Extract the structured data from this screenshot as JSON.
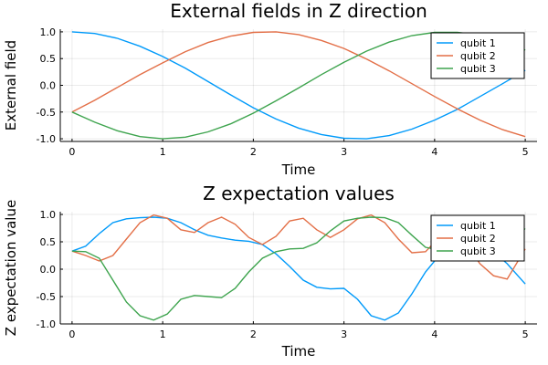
{
  "chart_data": [
    {
      "type": "line",
      "title": "External fields in Z direction",
      "xlabel": "Time",
      "ylabel": "External field",
      "xlim": [
        -0.13,
        5.13
      ],
      "ylim": [
        -1.05,
        1.05
      ],
      "xticks": [
        0,
        1,
        2,
        3,
        4,
        5
      ],
      "yticks": [
        -1.0,
        -0.5,
        0.0,
        0.5,
        1.0
      ],
      "xtick_labels": [
        "0",
        "1",
        "2",
        "3",
        "4",
        "5"
      ],
      "ytick_labels": [
        "-1.0",
        "-0.5",
        "0.0",
        "0.5",
        "1.0"
      ],
      "grid": true,
      "legend_position": "top-right",
      "series": [
        {
          "name": "qubit 1",
          "color": "#009AFA",
          "x": [
            0,
            0.25,
            0.5,
            0.75,
            1,
            1.25,
            1.5,
            1.75,
            2,
            2.25,
            2.5,
            2.75,
            3,
            3.25,
            3.5,
            3.75,
            4,
            4.25,
            4.5,
            4.75,
            5
          ],
          "y": [
            1.0,
            0.97,
            0.88,
            0.73,
            0.54,
            0.32,
            0.07,
            -0.18,
            -0.42,
            -0.63,
            -0.8,
            -0.92,
            -0.99,
            -1.0,
            -0.94,
            -0.82,
            -0.65,
            -0.45,
            -0.21,
            0.03,
            0.28
          ]
        },
        {
          "name": "qubit 2",
          "color": "#E36F47",
          "x": [
            0,
            0.25,
            0.5,
            0.75,
            1,
            1.25,
            1.5,
            1.75,
            2,
            2.25,
            2.5,
            2.75,
            3,
            3.25,
            3.5,
            3.75,
            4,
            4.25,
            4.5,
            4.75,
            5
          ],
          "y": [
            -0.5,
            -0.28,
            -0.04,
            0.2,
            0.42,
            0.63,
            0.8,
            0.92,
            0.99,
            1.0,
            0.95,
            0.84,
            0.69,
            0.49,
            0.27,
            0.03,
            -0.21,
            -0.44,
            -0.65,
            -0.83,
            -0.96
          ]
        },
        {
          "name": "qubit 3",
          "color": "#3EA44E",
          "x": [
            0,
            0.25,
            0.5,
            0.75,
            1,
            1.25,
            1.5,
            1.75,
            2,
            2.25,
            2.5,
            2.75,
            3,
            3.25,
            3.5,
            3.75,
            4,
            4.25,
            4.5,
            4.75,
            5
          ],
          "y": [
            -0.5,
            -0.69,
            -0.85,
            -0.96,
            -1.0,
            -0.97,
            -0.87,
            -0.72,
            -0.52,
            -0.29,
            -0.05,
            0.2,
            0.43,
            0.64,
            0.81,
            0.93,
            0.99,
            0.99,
            0.94,
            0.82,
            0.66
          ]
        }
      ]
    },
    {
      "type": "line",
      "title": "Z expectation values",
      "xlabel": "Time",
      "ylabel": "Z expectation value",
      "xlim": [
        -0.13,
        5.13
      ],
      "ylim": [
        -1.0,
        1.05
      ],
      "xticks": [
        0,
        1,
        2,
        3,
        4,
        5
      ],
      "yticks": [
        -1.0,
        -0.5,
        0.0,
        0.5,
        1.0
      ],
      "xtick_labels": [
        "0",
        "1",
        "2",
        "3",
        "4",
        "5"
      ],
      "ytick_labels": [
        "-1.0",
        "-0.5",
        "0.0",
        "0.5",
        "1.0"
      ],
      "grid": true,
      "legend_position": "top-right",
      "series": [
        {
          "name": "qubit 1",
          "color": "#009AFA",
          "x": [
            0,
            0.15,
            0.3,
            0.45,
            0.6,
            0.75,
            0.9,
            1.05,
            1.2,
            1.35,
            1.5,
            1.65,
            1.8,
            1.95,
            2.1,
            2.25,
            2.4,
            2.55,
            2.7,
            2.85,
            3.0,
            3.15,
            3.3,
            3.45,
            3.6,
            3.75,
            3.9,
            4.05,
            4.2,
            4.35,
            4.5,
            4.65,
            4.8,
            5.0
          ],
          "y": [
            0.33,
            0.42,
            0.65,
            0.85,
            0.92,
            0.94,
            0.95,
            0.93,
            0.85,
            0.72,
            0.62,
            0.57,
            0.53,
            0.51,
            0.45,
            0.28,
            0.05,
            -0.2,
            -0.33,
            -0.36,
            -0.35,
            -0.55,
            -0.85,
            -0.93,
            -0.8,
            -0.45,
            -0.05,
            0.25,
            0.42,
            0.45,
            0.42,
            0.32,
            0.1,
            -0.27
          ]
        },
        {
          "name": "qubit 2",
          "color": "#E36F47",
          "x": [
            0,
            0.15,
            0.3,
            0.45,
            0.6,
            0.75,
            0.9,
            1.05,
            1.2,
            1.35,
            1.5,
            1.65,
            1.8,
            1.95,
            2.1,
            2.25,
            2.4,
            2.55,
            2.7,
            2.85,
            3.0,
            3.15,
            3.3,
            3.45,
            3.6,
            3.75,
            3.9,
            4.05,
            4.2,
            4.35,
            4.5,
            4.65,
            4.8,
            5.0
          ],
          "y": [
            0.33,
            0.25,
            0.15,
            0.25,
            0.55,
            0.85,
            0.99,
            0.93,
            0.72,
            0.67,
            0.85,
            0.95,
            0.82,
            0.58,
            0.45,
            0.6,
            0.88,
            0.93,
            0.72,
            0.58,
            0.72,
            0.92,
            0.99,
            0.85,
            0.55,
            0.3,
            0.32,
            0.58,
            0.65,
            0.45,
            0.1,
            -0.12,
            -0.18,
            0.37
          ]
        },
        {
          "name": "qubit 3",
          "color": "#3EA44E",
          "x": [
            0,
            0.15,
            0.3,
            0.45,
            0.6,
            0.75,
            0.9,
            1.05,
            1.2,
            1.35,
            1.5,
            1.65,
            1.8,
            1.95,
            2.1,
            2.25,
            2.4,
            2.55,
            2.7,
            2.85,
            3.0,
            3.15,
            3.3,
            3.45,
            3.6,
            3.75,
            3.9,
            4.05,
            4.2,
            4.35,
            4.5,
            4.65,
            4.8,
            5.0
          ],
          "y": [
            0.33,
            0.32,
            0.2,
            -0.2,
            -0.6,
            -0.85,
            -0.93,
            -0.82,
            -0.55,
            -0.48,
            -0.5,
            -0.52,
            -0.35,
            -0.05,
            0.2,
            0.32,
            0.37,
            0.38,
            0.48,
            0.7,
            0.88,
            0.93,
            0.95,
            0.94,
            0.85,
            0.62,
            0.4,
            0.35,
            0.3,
            0.2,
            0.35,
            0.75,
            0.88,
            0.73
          ]
        }
      ]
    }
  ]
}
